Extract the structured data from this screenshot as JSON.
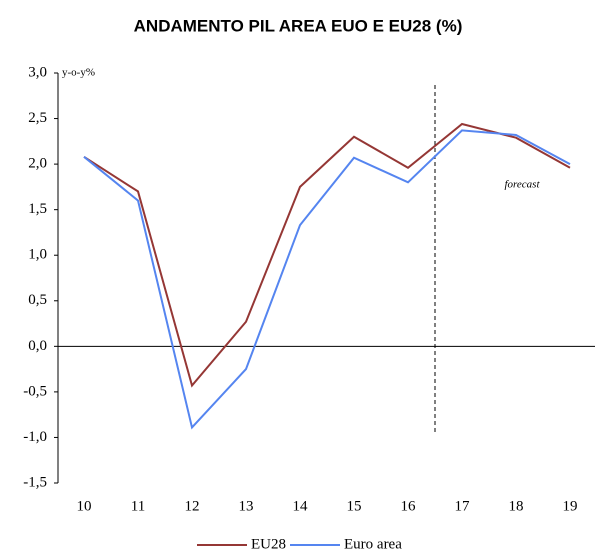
{
  "chart_data": {
    "type": "line",
    "title": "ANDAMENTO PIL AREA EUO E EU28 (%)",
    "annotations": [
      "y-o-y%",
      "forecast"
    ],
    "categories": [
      "10",
      "11",
      "12",
      "13",
      "14",
      "15",
      "16",
      "17",
      "18",
      "19"
    ],
    "series": [
      {
        "name": "EU28",
        "color": "#953735",
        "values": [
          2.08,
          1.7,
          -0.43,
          0.27,
          1.75,
          2.3,
          1.96,
          2.44,
          2.29,
          1.96
        ]
      },
      {
        "name": "Euro area",
        "color": "#5585f0",
        "values": [
          2.08,
          1.6,
          -0.89,
          -0.25,
          1.33,
          2.07,
          1.8,
          2.37,
          2.32,
          2.0
        ]
      }
    ],
    "ylim": [
      -1.5,
      3.0
    ],
    "yticks": [
      {
        "value": 3.0,
        "label": "3,0"
      },
      {
        "value": 2.5,
        "label": "2,5"
      },
      {
        "value": 2.0,
        "label": "2,0"
      },
      {
        "value": 1.5,
        "label": "1,5"
      },
      {
        "value": 1.0,
        "label": "1,0"
      },
      {
        "value": 0.5,
        "label": "0,5"
      },
      {
        "value": 0.0,
        "label": "0,0"
      },
      {
        "value": -0.5,
        "label": "-0,5"
      },
      {
        "value": -1.0,
        "label": "-1,0"
      },
      {
        "value": -1.5,
        "label": "-1,5"
      }
    ],
    "legend": "bottom",
    "grid": false
  }
}
